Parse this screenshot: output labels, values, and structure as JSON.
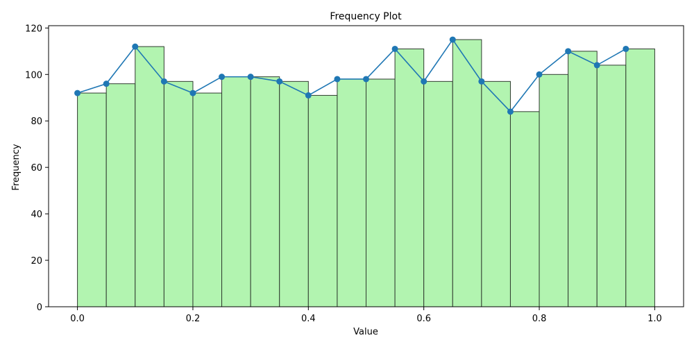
{
  "chart_data": {
    "type": "bar",
    "title": "Frequency Plot",
    "xlabel": "Value",
    "ylabel": "Frequency",
    "xlim": [
      -0.05,
      1.05
    ],
    "ylim": [
      0,
      121
    ],
    "x_ticks": [
      0.0,
      0.2,
      0.4,
      0.6,
      0.8,
      1.0
    ],
    "x_tick_labels": [
      "0.0",
      "0.2",
      "0.4",
      "0.6",
      "0.8",
      "1.0"
    ],
    "y_ticks": [
      0,
      20,
      40,
      60,
      80,
      100,
      120
    ],
    "y_tick_labels": [
      "0",
      "20",
      "40",
      "60",
      "80",
      "100",
      "120"
    ],
    "bin_edges": [
      0.0,
      0.05,
      0.1,
      0.15,
      0.2,
      0.25,
      0.3,
      0.35,
      0.4,
      0.45,
      0.5,
      0.55,
      0.6,
      0.65,
      0.7,
      0.75,
      0.8,
      0.85,
      0.9,
      0.95,
      1.0
    ],
    "values": [
      92,
      96,
      112,
      97,
      92,
      99,
      99,
      97,
      91,
      98,
      98,
      111,
      97,
      115,
      97,
      84,
      100,
      110,
      104,
      111
    ],
    "grid": false,
    "bar_color": "#b2f4b0",
    "bar_edge_color": "#2f3b2f",
    "line_color": "#1f77b4"
  }
}
